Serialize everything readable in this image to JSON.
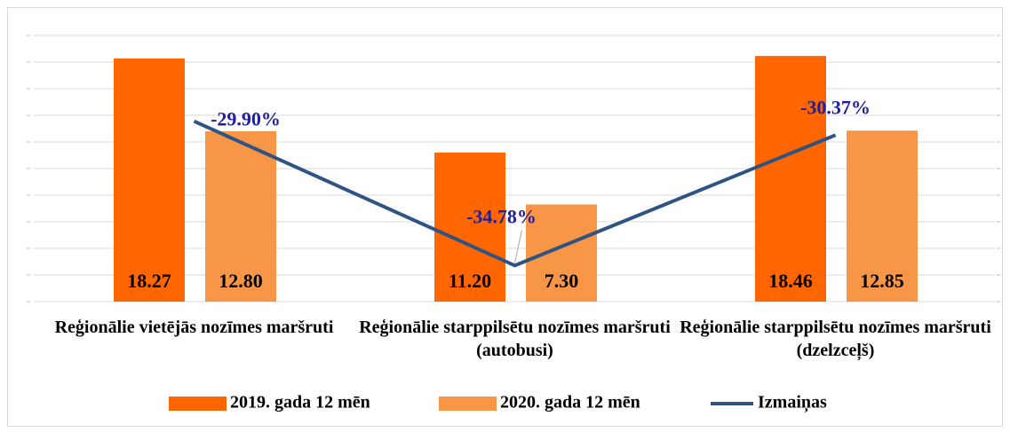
{
  "chart_data": {
    "type": "bar-line",
    "categories": [
      "Reģionālie vietējās nozīmes maršruti",
      "Reģionālie starppilsētu nozīmes maršruti (autobusi)",
      "Reģionālie starppilsētu nozīmes maršruti (dzelzceļš)"
    ],
    "series": [
      {
        "name": "2019. gada 12 mēn",
        "color": "#ff6600",
        "type": "bar",
        "values": [
          18.27,
          11.2,
          18.46
        ],
        "value_labels": [
          "18.27",
          "11.20",
          "18.46"
        ]
      },
      {
        "name": "2020. gada 12 mēn",
        "color": "#f79646",
        "type": "bar",
        "values": [
          12.8,
          7.3,
          12.85
        ],
        "value_labels": [
          "12.80",
          "7.30",
          "12.85"
        ]
      },
      {
        "name": "Izmaiņas",
        "color": "#2f5382",
        "type": "line",
        "axis": "y2",
        "values": [
          -29.9,
          -34.78,
          -30.37
        ],
        "value_labels": [
          "-29.90%",
          "-34.78%",
          "-30.37%"
        ]
      }
    ],
    "ylim": [
      0,
      20
    ],
    "yticks": [
      0,
      2,
      4,
      6,
      8,
      10,
      12,
      14,
      16,
      18,
      20
    ],
    "y2lim": [
      -36,
      -27
    ],
    "grid": true,
    "legend": "bottom"
  }
}
